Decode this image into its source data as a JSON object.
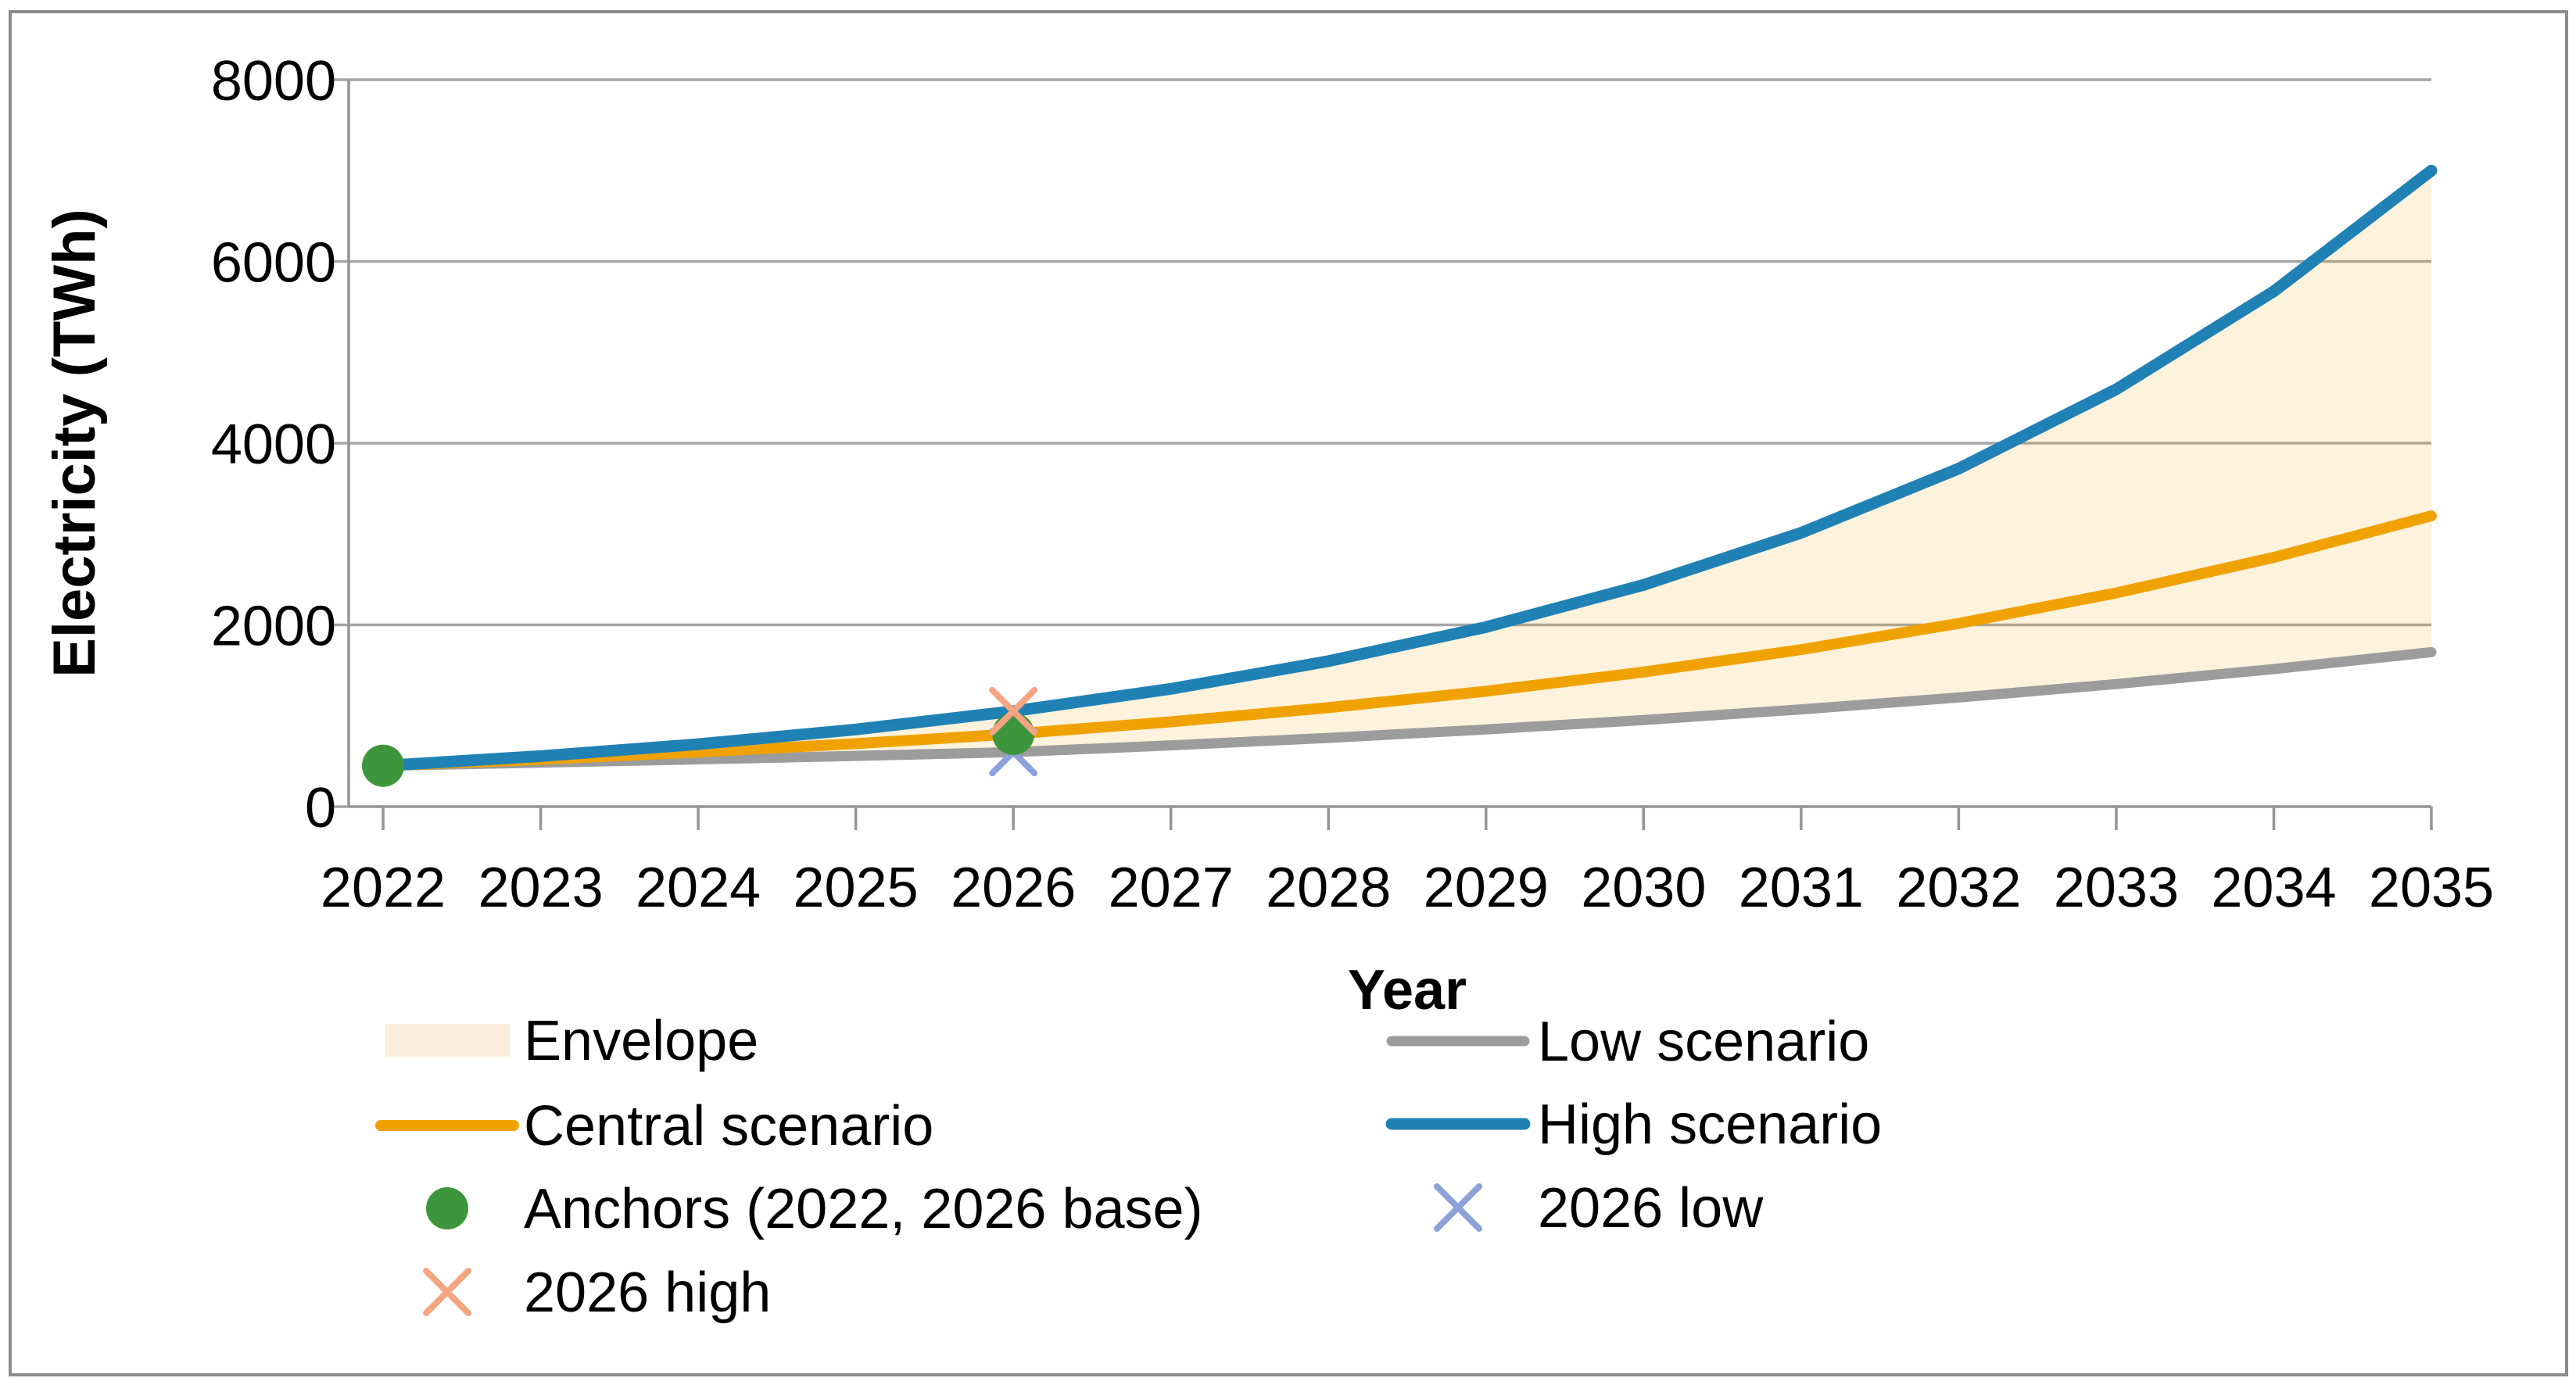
{
  "chart_data": {
    "type": "line",
    "title": "",
    "xlabel": "Year",
    "ylabel": "Electricity (TWh)",
    "x_years": [
      2022,
      2023,
      2024,
      2025,
      2026,
      2027,
      2028,
      2029,
      2030,
      2031,
      2032,
      2033,
      2034,
      2035
    ],
    "x_tick_labels": [
      "2022",
      "2023",
      "2024",
      "2025",
      "2026",
      "2027",
      "2028",
      "2029",
      "2030",
      "2031",
      "2032",
      "2033",
      "2034",
      "2035"
    ],
    "y_tick_values": [
      0,
      2000,
      4000,
      6000,
      8000
    ],
    "y_tick_labels": [
      "0",
      "2000",
      "4000",
      "6000",
      "8000"
    ],
    "ylim": [
      0,
      8000
    ],
    "grid": true,
    "legend_position": "below",
    "series": [
      {
        "name": "Low scenario",
        "color": "#9C9C9C",
        "width": 13,
        "values": [
          450,
          484,
          520,
          558,
          600,
          674,
          756,
          849,
          953,
          1070,
          1201,
          1349,
          1514,
          1700
        ]
      },
      {
        "name": "Central scenario",
        "color": "#F0A202",
        "width": 14,
        "values": [
          450,
          520,
          600,
          693,
          800,
          933,
          1089,
          1270,
          1481,
          1728,
          2016,
          2352,
          2743,
          3200
        ]
      },
      {
        "name": "High scenario",
        "color": "#2081B5",
        "width": 15,
        "values": [
          450,
          556,
          687,
          849,
          1050,
          1296,
          1601,
          1976,
          2440,
          3013,
          3720,
          4593,
          5671,
          7000
        ]
      }
    ],
    "envelope": {
      "label": "Envelope",
      "between": [
        "Low scenario",
        "High scenario"
      ],
      "fill_color": "#F0A202",
      "fill_opacity": 0.14,
      "legend_swatch_color": "#FCEEDD"
    },
    "markers": [
      {
        "label": "2026 low",
        "shape": "x",
        "color": "#8CA2D8",
        "points": [
          [
            2026,
            600
          ]
        ]
      },
      {
        "label": "Anchors (2022, 2026 base)",
        "shape": "circle",
        "color": "#3E963C",
        "points": [
          [
            2022,
            450
          ],
          [
            2026,
            800
          ]
        ]
      },
      {
        "label": "2026 high",
        "shape": "x",
        "color": "#F6A583",
        "points": [
          [
            2026,
            1050
          ]
        ]
      }
    ],
    "legend": {
      "columns": [
        {
          "entries": [
            {
              "label": "Envelope",
              "swatch": "patch",
              "color": "#FCEEDD",
              "width": 14
            },
            {
              "label": "Central scenario",
              "swatch": "line",
              "color": "#F0A202",
              "width": 14
            },
            {
              "label": "Anchors (2022, 2026 base)",
              "swatch": "circle",
              "color": "#3E963C",
              "width": 14
            },
            {
              "label": "2026 high",
              "swatch": "x",
              "color": "#F6A583",
              "width": 14
            }
          ]
        },
        {
          "entries": [
            {
              "label": "Low scenario",
              "swatch": "line",
              "color": "#9C9C9C",
              "width": 13
            },
            {
              "label": "High scenario",
              "swatch": "line",
              "color": "#2081B5",
              "width": 15
            },
            {
              "label": "2026 low",
              "swatch": "x",
              "color": "#8CA2D8",
              "width": 14
            }
          ]
        }
      ]
    },
    "axis_colors": {
      "spine": "#949494",
      "grid": "#A6A6A6",
      "tick": "#949494",
      "frame": "#8C8C8C"
    }
  }
}
